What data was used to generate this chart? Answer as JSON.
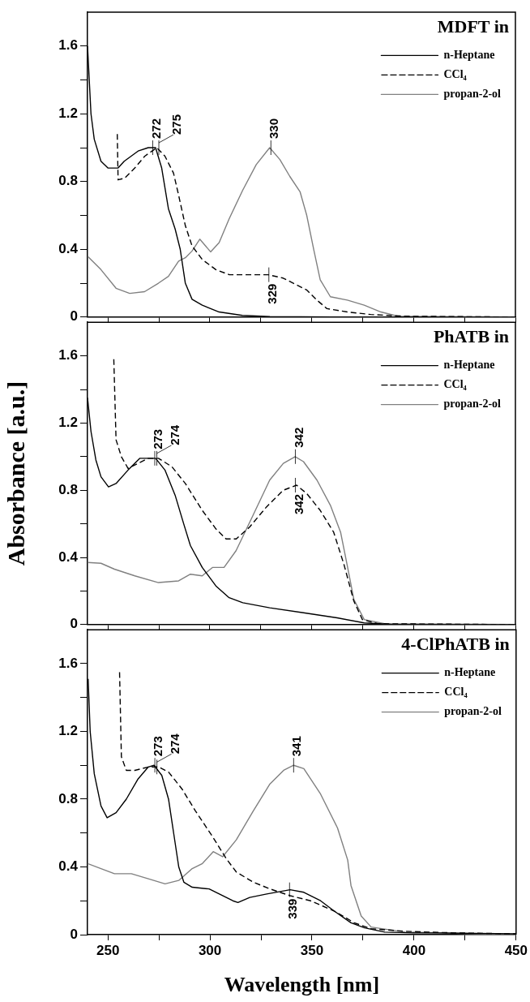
{
  "chart_data": [
    {
      "type": "line",
      "legend_title": "MDFT in",
      "legend": "top right",
      "grid": false,
      "marker": "none",
      "tick_labels": "y",
      "xlim": [
        240,
        450
      ],
      "xticks": [
        250,
        {
          "value": 275,
          "label": null
        },
        300,
        {
          "value": 325,
          "label": null
        },
        350,
        {
          "value": 375,
          "label": null
        },
        400,
        {
          "value": 425,
          "label": null
        },
        450
      ],
      "ylim": [
        0,
        1.8
      ],
      "yticks": [
        0,
        {
          "value": 0.2,
          "label": null
        },
        0.4,
        {
          "value": 0.6,
          "label": null
        },
        0.8,
        {
          "value": 1.0,
          "label": null
        },
        1.2,
        {
          "value": 1.4,
          "label": null
        },
        1.6
      ],
      "series": [
        {
          "name": "n-Heptane",
          "color": "#000000",
          "line_style": "solid",
          "x": [
            240,
            241.7,
            243.3,
            246.6,
            250,
            255,
            258,
            264.8,
            269.8,
            273.4,
            276.4,
            279.7,
            283,
            285.5,
            288,
            291.3,
            296.3,
            304.6,
            316,
            329.5,
            360,
            400,
            450
          ],
          "values": [
            1.6,
            1.2,
            1.05,
            0.92,
            0.88,
            0.88,
            0.92,
            0.98,
            1.0,
            1.0,
            0.88,
            0.64,
            0.52,
            0.4,
            0.2,
            0.105,
            0.07,
            0.03,
            0.01,
            0.003,
            0,
            0,
            0
          ]
        },
        {
          "name": "CCl₄",
          "color": "#000000",
          "line_style": "dashed",
          "x": [
            254.6,
            255,
            258.2,
            263.2,
            268.1,
            274,
            278,
            282.2,
            284.7,
            288,
            291.3,
            296.3,
            303,
            309.6,
            322.8,
            328.6,
            336,
            342.6,
            347.6,
            352.6,
            357.5,
            367.5,
            379,
            395.6,
            450
          ],
          "values": [
            1.08,
            0.81,
            0.82,
            0.88,
            0.95,
            1.0,
            0.95,
            0.85,
            0.72,
            0.54,
            0.42,
            0.34,
            0.28,
            0.25,
            0.25,
            0.25,
            0.23,
            0.19,
            0.16,
            0.1,
            0.05,
            0.03,
            0.015,
            0.005,
            0
          ]
        },
        {
          "name": "propan-2-ol",
          "color": "#808080",
          "line_style": "solid",
          "x": [
            240,
            246.6,
            254,
            260.7,
            268,
            274.8,
            279.7,
            284.7,
            288,
            291.3,
            295.1,
            300.4,
            304.6,
            309.5,
            316.2,
            322.8,
            329.4,
            334.4,
            339.3,
            344.3,
            347.6,
            351,
            354.2,
            359.2,
            367.5,
            375.8,
            384,
            392.3,
            450
          ],
          "values": [
            0.36,
            0.28,
            0.17,
            0.14,
            0.15,
            0.2,
            0.24,
            0.33,
            0.35,
            0.39,
            0.46,
            0.385,
            0.44,
            0.58,
            0.75,
            0.9,
            1.0,
            0.93,
            0.83,
            0.74,
            0.6,
            0.4,
            0.22,
            0.12,
            0.1,
            0.07,
            0.03,
            0.005,
            0
          ]
        }
      ],
      "annotations": [
        {
          "text": "272",
          "x": 272,
          "y": 1.0
        },
        {
          "text": "275",
          "x": 275,
          "y": 1.0
        },
        {
          "text": "330",
          "x": 330,
          "y": 1.0
        },
        {
          "text": "329",
          "x": 329,
          "y": 0.25
        }
      ]
    },
    {
      "type": "line",
      "legend_title": "PhATB in",
      "legend": "top right",
      "grid": false,
      "marker": "none",
      "tick_labels": "y",
      "ylabel": "Absorbance [a.u.]",
      "xlim": [
        240,
        450
      ],
      "xticks": [
        250,
        {
          "value": 275,
          "label": null
        },
        300,
        {
          "value": 325,
          "label": null
        },
        350,
        {
          "value": 375,
          "label": null
        },
        400,
        {
          "value": 425,
          "label": null
        },
        450
      ],
      "ylim": [
        0,
        1.8
      ],
      "yticks": [
        0,
        {
          "value": 0.2,
          "label": null
        },
        0.4,
        {
          "value": 0.6,
          "label": null
        },
        0.8,
        {
          "value": 1.0,
          "label": null
        },
        1.2,
        {
          "value": 1.4,
          "label": null
        },
        1.6
      ],
      "series": [
        {
          "name": "n-Heptane",
          "color": "#000000",
          "line_style": "solid",
          "x": [
            240,
            241.7,
            244.1,
            246.6,
            250.3,
            254,
            259.9,
            265.7,
            269.8,
            273.4,
            278,
            283,
            287.2,
            290.5,
            296.3,
            303,
            309.5,
            316.2,
            329.4,
            346,
            362.5,
            375.8,
            390,
            450
          ],
          "values": [
            1.35,
            1.15,
            0.98,
            0.88,
            0.82,
            0.84,
            0.92,
            0.99,
            0.99,
            0.99,
            0.92,
            0.77,
            0.6,
            0.47,
            0.34,
            0.23,
            0.16,
            0.13,
            0.1,
            0.07,
            0.04,
            0.01,
            0,
            0
          ]
        },
        {
          "name": "CCl₄",
          "color": "#000000",
          "line_style": "dashed",
          "x": [
            252.9,
            254,
            256.6,
            259.9,
            264.8,
            269.8,
            274.8,
            281.4,
            288,
            296.3,
            303,
            308,
            313,
            319.5,
            327.8,
            336.1,
            342.6,
            347.6,
            354.2,
            360.8,
            365.8,
            370.7,
            374.9,
            382.4,
            450
          ],
          "values": [
            1.58,
            1.1,
            1.0,
            0.93,
            0.96,
            0.99,
            0.99,
            0.94,
            0.84,
            0.68,
            0.57,
            0.51,
            0.51,
            0.58,
            0.7,
            0.8,
            0.83,
            0.78,
            0.68,
            0.55,
            0.36,
            0.14,
            0.03,
            0.005,
            0
          ]
        },
        {
          "name": "propan-2-ol",
          "color": "#808080",
          "line_style": "solid",
          "x": [
            240,
            246.6,
            253.2,
            263.2,
            274.8,
            284.7,
            290.5,
            296.3,
            301.3,
            307,
            312.9,
            321.2,
            329.4,
            336.1,
            341.9,
            346,
            352.6,
            359.2,
            364.2,
            367.5,
            370.7,
            375.8,
            385.8,
            450
          ],
          "values": [
            0.37,
            0.365,
            0.33,
            0.29,
            0.25,
            0.26,
            0.3,
            0.29,
            0.34,
            0.34,
            0.44,
            0.65,
            0.86,
            0.96,
            1.0,
            0.97,
            0.86,
            0.71,
            0.55,
            0.35,
            0.15,
            0.03,
            0.005,
            0
          ]
        }
      ],
      "annotations": [
        {
          "text": "273",
          "x": 273,
          "y": 0.99
        },
        {
          "text": "274",
          "x": 274,
          "y": 0.99
        },
        {
          "text": "342",
          "x": 342,
          "y": 1.0
        },
        {
          "text": "342",
          "x": 342,
          "y": 0.83
        }
      ]
    },
    {
      "type": "line",
      "legend_title": "4-ClPhATB in",
      "legend": "top right",
      "grid": false,
      "marker": "none",
      "xlabel": "Wavelength [nm]",
      "xlim": [
        240,
        450
      ],
      "xticks": [
        250,
        {
          "value": 275,
          "label": null
        },
        300,
        {
          "value": 325,
          "label": null
        },
        350,
        {
          "value": 375,
          "label": null
        },
        400,
        {
          "value": 425,
          "label": null
        },
        450
      ],
      "ylim": [
        0,
        1.8
      ],
      "yticks": [
        0,
        {
          "value": 0.2,
          "label": null
        },
        0.4,
        {
          "value": 0.6,
          "label": null
        },
        0.8,
        {
          "value": 1.0,
          "label": null
        },
        1.2,
        {
          "value": 1.4,
          "label": null
        },
        1.6
      ],
      "series": [
        {
          "name": "n-Heptane",
          "color": "#000000",
          "line_style": "solid",
          "x": [
            240.3,
            241.3,
            243.3,
            246.6,
            249.6,
            254,
            259,
            264.8,
            269.8,
            272.6,
            276.4,
            279.7,
            282.2,
            284.7,
            287.2,
            291.3,
            299.6,
            306.2,
            311.2,
            313.7,
            319.5,
            327.8,
            339.3,
            346,
            354.2,
            360.8,
            369.1,
            375.8,
            385.7,
            400.6,
            412,
            450
          ],
          "values": [
            1.51,
            1.2,
            0.95,
            0.76,
            0.69,
            0.72,
            0.8,
            0.92,
            0.99,
            1.0,
            0.94,
            0.8,
            0.6,
            0.4,
            0.31,
            0.28,
            0.27,
            0.23,
            0.2,
            0.19,
            0.22,
            0.24,
            0.265,
            0.25,
            0.2,
            0.14,
            0.07,
            0.04,
            0.015,
            0.01,
            0.01,
            0.005
          ]
        },
        {
          "name": "CCl₄",
          "color": "#000000",
          "line_style": "dashed",
          "x": [
            255.7,
            256.6,
            259,
            263.2,
            269.8,
            274.8,
            279.7,
            286.3,
            292.9,
            301.2,
            307.9,
            312.9,
            321.2,
            329.4,
            339.3,
            349.3,
            360.8,
            370.7,
            379,
            395.6,
            420.5,
            450
          ],
          "values": [
            1.55,
            1.05,
            0.97,
            0.97,
            0.99,
            0.99,
            0.96,
            0.86,
            0.73,
            0.58,
            0.45,
            0.37,
            0.31,
            0.27,
            0.23,
            0.2,
            0.14,
            0.07,
            0.035,
            0.02,
            0.01,
            0.005
          ]
        },
        {
          "name": "propan-2-ol",
          "color": "#808080",
          "line_style": "solid",
          "x": [
            240,
            246.6,
            253.2,
            261.5,
            269.8,
            278,
            284.7,
            291.3,
            296.3,
            301.6,
            306.2,
            312.9,
            321.2,
            329.4,
            336.1,
            341,
            346,
            354.2,
            362.5,
            367.5,
            369.1,
            374.1,
            379,
            395.6,
            450
          ],
          "values": [
            0.42,
            0.39,
            0.36,
            0.36,
            0.33,
            0.3,
            0.32,
            0.39,
            0.42,
            0.49,
            0.46,
            0.56,
            0.73,
            0.89,
            0.97,
            1.0,
            0.98,
            0.83,
            0.63,
            0.44,
            0.29,
            0.11,
            0.045,
            0.015,
            0
          ]
        }
      ],
      "annotations": [
        {
          "text": "273",
          "x": 273,
          "y": 1.0
        },
        {
          "text": "274",
          "x": 274,
          "y": 0.99
        },
        {
          "text": "341",
          "x": 341,
          "y": 1.0
        },
        {
          "text": "339",
          "x": 339,
          "y": 0.265
        }
      ]
    }
  ]
}
